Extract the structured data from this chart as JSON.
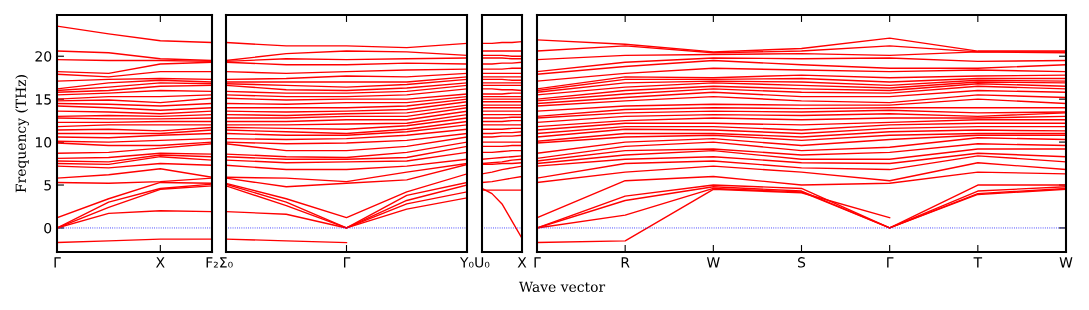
{
  "chart_data": [
    {
      "type": "line",
      "ylabel": "Frequency (THz)",
      "color": "#ff0000",
      "categories": [
        "Γ",
        null,
        "X",
        "F₂"
      ],
      "ylim": [
        -2.8,
        24.8
      ],
      "yticks": [
        0,
        5,
        10,
        15,
        20
      ],
      "grid": false,
      "legend": false,
      "ref_lines": [
        {
          "axis": "y",
          "value": 0,
          "color": "#0000ff",
          "line_style": "dotted"
        }
      ],
      "series": [
        {
          "values": [
            -1.7,
            -1.5,
            -1.3,
            -1.3
          ]
        },
        {
          "values": [
            0,
            1.7,
            2.0,
            1.9
          ]
        },
        {
          "values": [
            0,
            2.4,
            4.5,
            4.9
          ]
        },
        {
          "values": [
            0,
            3.0,
            4.6,
            5.1
          ]
        },
        {
          "values": [
            1.2,
            3.4,
            5.3,
            5.2
          ]
        },
        {
          "values": [
            5.3,
            5.2,
            5.4,
            5.8
          ]
        },
        {
          "values": [
            5.8,
            6.2,
            6.9,
            5.9
          ]
        },
        {
          "values": [
            7.2,
            7.0,
            7.5,
            7.3
          ]
        },
        {
          "values": [
            7.5,
            7.4,
            8.3,
            7.9
          ]
        },
        {
          "values": [
            7.8,
            7.7,
            8.5,
            8.3
          ]
        },
        {
          "values": [
            8.1,
            8.2,
            8.7,
            8.6
          ]
        },
        {
          "values": [
            8.7,
            8.8,
            9.3,
            9.8
          ]
        },
        {
          "values": [
            9.9,
            9.6,
            9.6,
            10.0
          ]
        },
        {
          "values": [
            10.1,
            10.0,
            10.2,
            10.4
          ]
        },
        {
          "values": [
            10.6,
            10.5,
            10.8,
            11.0
          ]
        },
        {
          "values": [
            11.0,
            11.0,
            11.0,
            11.4
          ]
        },
        {
          "values": [
            11.4,
            11.5,
            11.3,
            11.7
          ]
        },
        {
          "values": [
            11.8,
            12.0,
            12.0,
            12.0
          ]
        },
        {
          "values": [
            12.3,
            12.3,
            12.4,
            12.4
          ]
        },
        {
          "values": [
            12.8,
            12.7,
            12.7,
            12.8
          ]
        },
        {
          "values": [
            13.0,
            13.1,
            13.0,
            13.2
          ]
        },
        {
          "values": [
            13.6,
            13.5,
            13.3,
            13.6
          ]
        },
        {
          "values": [
            14.2,
            14.0,
            13.7,
            14.0
          ]
        },
        {
          "values": [
            14.5,
            14.4,
            14.2,
            14.5
          ]
        },
        {
          "values": [
            14.8,
            14.9,
            14.6,
            15.1
          ]
        },
        {
          "values": [
            15.0,
            15.3,
            15.3,
            15.5
          ]
        },
        {
          "values": [
            15.5,
            15.7,
            16.0,
            15.9
          ]
        },
        {
          "values": [
            15.8,
            16.0,
            16.5,
            16.6
          ]
        },
        {
          "values": [
            16.0,
            16.4,
            16.9,
            16.8
          ]
        },
        {
          "values": [
            16.2,
            16.9,
            17.2,
            17.0
          ]
        },
        {
          "values": [
            17.1,
            17.3,
            17.4,
            17.3
          ]
        },
        {
          "values": [
            17.9,
            17.6,
            18.2,
            18.2
          ]
        },
        {
          "values": [
            18.2,
            18.0,
            19.1,
            19.3
          ]
        },
        {
          "values": [
            19.6,
            19.5,
            19.5,
            19.4
          ]
        },
        {
          "values": [
            20.6,
            20.4,
            19.7,
            19.5
          ]
        },
        {
          "values": [
            23.5,
            22.6,
            21.8,
            21.6
          ]
        }
      ]
    },
    {
      "type": "line",
      "color": "#ff0000",
      "categories": [
        "Σ₀",
        null,
        "Γ",
        null,
        "Y₀"
      ],
      "ylim": [
        -2.8,
        24.8
      ],
      "yticks": [
        0,
        5,
        10,
        15,
        20
      ],
      "tick_labels": "x",
      "grid": false,
      "legend": false,
      "ref_lines": [
        {
          "axis": "y",
          "value": 0,
          "color": "#0000ff",
          "line_style": "dotted"
        }
      ],
      "series": [
        {
          "values": [
            -1.3,
            -1.5,
            -1.7,
            null,
            null
          ]
        },
        {
          "values": [
            null,
            null,
            0,
            2.2,
            3.5
          ]
        },
        {
          "values": [
            1.9,
            1.6,
            0,
            2.8,
            4.2
          ]
        },
        {
          "values": [
            4.9,
            2.6,
            0,
            3.2,
            5.0
          ]
        },
        {
          "values": [
            5.1,
            3.0,
            0,
            3.8,
            5.3
          ]
        },
        {
          "values": [
            5.2,
            3.4,
            1.2,
            4.2,
            6.3
          ]
        },
        {
          "values": [
            5.8,
            4.8,
            5.2,
            5.6,
            7.4
          ]
        },
        {
          "values": [
            5.9,
            5.8,
            5.4,
            6.5,
            7.5
          ]
        },
        {
          "values": [
            7.3,
            6.8,
            6.8,
            7.2,
            8.0
          ]
        },
        {
          "values": [
            7.9,
            7.6,
            7.7,
            7.8,
            8.8
          ]
        },
        {
          "values": [
            8.3,
            8.0,
            8.0,
            8.2,
            9.5
          ]
        },
        {
          "values": [
            8.6,
            8.3,
            8.2,
            8.8,
            10.0
          ]
        },
        {
          "values": [
            9.8,
            9.0,
            9.0,
            9.5,
            10.6
          ]
        },
        {
          "values": [
            10.0,
            9.8,
            9.9,
            10.2,
            11.0
          ]
        },
        {
          "values": [
            10.4,
            10.3,
            10.4,
            10.8,
            11.5
          ]
        },
        {
          "values": [
            11.0,
            10.8,
            10.8,
            11.2,
            12.0
          ]
        },
        {
          "values": [
            11.4,
            11.2,
            11.0,
            11.5,
            12.4
          ]
        },
        {
          "values": [
            11.7,
            11.6,
            11.5,
            11.9,
            12.8
          ]
        },
        {
          "values": [
            12.0,
            12.0,
            12.1,
            12.2,
            13.2
          ]
        },
        {
          "values": [
            12.4,
            12.4,
            12.6,
            12.6,
            13.6
          ]
        },
        {
          "values": [
            12.8,
            12.8,
            13.0,
            13.0,
            14.0
          ]
        },
        {
          "values": [
            13.2,
            13.1,
            13.3,
            13.4,
            14.3
          ]
        },
        {
          "values": [
            13.6,
            13.5,
            13.6,
            13.8,
            14.7
          ]
        },
        {
          "values": [
            14.0,
            14.0,
            14.0,
            14.2,
            15.0
          ]
        },
        {
          "values": [
            14.5,
            14.4,
            14.6,
            14.6,
            15.3
          ]
        },
        {
          "values": [
            15.1,
            14.9,
            15.0,
            15.0,
            15.6
          ]
        },
        {
          "values": [
            15.5,
            15.3,
            15.3,
            15.5,
            16.2
          ]
        },
        {
          "values": [
            15.9,
            15.7,
            15.7,
            15.9,
            16.6
          ]
        },
        {
          "values": [
            16.6,
            16.1,
            16.0,
            16.3,
            16.9
          ]
        },
        {
          "values": [
            16.8,
            16.6,
            16.4,
            16.7,
            17.3
          ]
        },
        {
          "values": [
            17.0,
            17.0,
            17.0,
            17.0,
            17.6
          ]
        },
        {
          "values": [
            17.3,
            17.4,
            17.7,
            17.6,
            18.0
          ]
        },
        {
          "values": [
            18.2,
            18.0,
            18.2,
            18.4,
            18.5
          ]
        },
        {
          "values": [
            19.3,
            19.0,
            19.0,
            19.2,
            19.1
          ]
        },
        {
          "values": [
            19.4,
            19.7,
            19.6,
            19.7,
            19.8
          ]
        },
        {
          "values": [
            19.5,
            20.3,
            20.6,
            20.5,
            20.1
          ]
        },
        {
          "values": [
            21.6,
            21.2,
            21.2,
            21.0,
            21.5
          ]
        }
      ]
    },
    {
      "type": "line",
      "color": "#ff0000",
      "categories": [
        "U₀",
        null,
        null,
        null,
        "X"
      ],
      "ylim": [
        -2.8,
        24.8
      ],
      "yticks": [
        0,
        5,
        10,
        15,
        20
      ],
      "tick_labels": "x",
      "grid": false,
      "legend": false,
      "ref_lines": [
        {
          "axis": "y",
          "value": 0,
          "color": "#0000ff",
          "line_style": "dotted"
        }
      ],
      "series": [
        {
          "values": [
            4.6,
            4.0,
            2.8,
            0.8,
            -1.2
          ]
        },
        {
          "values": [
            4.4,
            4.4,
            4.4,
            4.4,
            4.4
          ]
        },
        {
          "values": [
            5.3,
            5.4,
            5.6,
            5.8,
            6.0
          ]
        },
        {
          "values": [
            6.3,
            6.5,
            6.8,
            7.0,
            7.2
          ]
        },
        {
          "values": [
            7.4,
            7.4,
            7.5,
            7.5,
            7.6
          ]
        },
        {
          "values": [
            7.5,
            7.6,
            7.7,
            7.9,
            8.0
          ]
        },
        {
          "values": [
            8.0,
            8.1,
            8.2,
            8.3,
            8.4
          ]
        },
        {
          "values": [
            8.8,
            8.8,
            8.9,
            9.0,
            9.0
          ]
        },
        {
          "values": [
            9.5,
            9.5,
            9.5,
            9.6,
            9.6
          ]
        },
        {
          "values": [
            10.0,
            10.0,
            10.0,
            10.0,
            10.0
          ]
        },
        {
          "values": [
            10.6,
            10.6,
            10.7,
            10.7,
            10.8
          ]
        },
        {
          "values": [
            11.0,
            11.0,
            11.1,
            11.1,
            11.2
          ]
        },
        {
          "values": [
            11.5,
            11.5,
            11.5,
            11.6,
            11.6
          ]
        },
        {
          "values": [
            12.0,
            12.0,
            12.0,
            12.0,
            12.0
          ]
        },
        {
          "values": [
            12.4,
            12.4,
            12.4,
            12.5,
            12.5
          ]
        },
        {
          "values": [
            12.8,
            12.8,
            12.8,
            12.9,
            12.9
          ]
        },
        {
          "values": [
            13.2,
            13.2,
            13.2,
            13.2,
            13.2
          ]
        },
        {
          "values": [
            13.6,
            13.6,
            13.6,
            13.6,
            13.6
          ]
        },
        {
          "values": [
            14.0,
            14.0,
            14.0,
            14.0,
            14.0
          ]
        },
        {
          "values": [
            14.3,
            14.3,
            14.3,
            14.3,
            14.3
          ]
        },
        {
          "values": [
            14.7,
            14.7,
            14.7,
            14.7,
            14.7
          ]
        },
        {
          "values": [
            15.0,
            15.0,
            15.0,
            15.0,
            15.0
          ]
        },
        {
          "values": [
            15.3,
            15.3,
            15.3,
            15.3,
            15.3
          ]
        },
        {
          "values": [
            15.6,
            15.6,
            15.6,
            15.7,
            15.7
          ]
        },
        {
          "values": [
            16.2,
            16.2,
            16.1,
            16.1,
            16.0
          ]
        },
        {
          "values": [
            16.6,
            16.6,
            16.6,
            16.6,
            16.6
          ]
        },
        {
          "values": [
            16.9,
            16.9,
            16.9,
            16.9,
            16.9
          ]
        },
        {
          "values": [
            17.3,
            17.3,
            17.3,
            17.2,
            17.2
          ]
        },
        {
          "values": [
            17.6,
            17.6,
            17.6,
            17.6,
            17.6
          ]
        },
        {
          "values": [
            18.0,
            18.0,
            18.0,
            18.0,
            18.0
          ]
        },
        {
          "values": [
            18.5,
            18.5,
            18.5,
            18.6,
            18.6
          ]
        },
        {
          "values": [
            19.1,
            19.1,
            19.2,
            19.2,
            19.3
          ]
        },
        {
          "values": [
            19.8,
            19.8,
            19.8,
            19.7,
            19.7
          ]
        },
        {
          "values": [
            20.1,
            20.1,
            20.1,
            20.0,
            20.0
          ]
        },
        {
          "values": [
            20.6,
            20.6,
            20.6,
            20.6,
            20.6
          ]
        },
        {
          "values": [
            21.5,
            21.5,
            21.6,
            21.6,
            21.7
          ]
        }
      ]
    },
    {
      "type": "line",
      "xlabel": "Wave vector",
      "color": "#ff0000",
      "categories": [
        "Γ",
        "R",
        "W",
        "S",
        "Γ",
        "T",
        "W"
      ],
      "ylim": [
        -2.8,
        24.8
      ],
      "yticks": [
        0,
        5,
        10,
        15,
        20
      ],
      "tick_labels": "x",
      "grid": false,
      "legend": false,
      "ref_lines": [
        {
          "axis": "y",
          "value": 0,
          "color": "#0000ff",
          "line_style": "dotted"
        }
      ],
      "series": [
        {
          "values": [
            -1.7,
            -1.5,
            4.5,
            4.1,
            1.2,
            null,
            null
          ]
        },
        {
          "values": [
            null,
            null,
            null,
            null,
            0,
            3.9,
            4.5
          ]
        },
        {
          "values": [
            0,
            1.5,
            4.6,
            4.2,
            0,
            4.0,
            4.6
          ]
        },
        {
          "values": [
            0,
            3.2,
            4.8,
            4.3,
            0,
            4.3,
            4.8
          ]
        },
        {
          "values": [
            0,
            3.7,
            5.0,
            4.6,
            0,
            5.0,
            5.0
          ]
        },
        {
          "values": [
            1.2,
            5.5,
            6.0,
            5.0,
            5.2,
            6.5,
            6.3
          ]
        },
        {
          "values": [
            5.3,
            6.5,
            7.2,
            6.5,
            5.5,
            7.6,
            6.8
          ]
        },
        {
          "values": [
            5.8,
            7.5,
            7.8,
            7.0,
            6.8,
            8.4,
            7.7
          ]
        },
        {
          "values": [
            7.2,
            8.0,
            8.3,
            7.6,
            7.5,
            8.7,
            8.3
          ]
        },
        {
          "values": [
            7.5,
            8.5,
            9.0,
            8.0,
            8.0,
            9.2,
            9.2
          ]
        },
        {
          "values": [
            7.8,
            9.0,
            9.2,
            8.5,
            8.8,
            9.8,
            9.6
          ]
        },
        {
          "values": [
            8.1,
            9.5,
            10.0,
            9.0,
            9.4,
            10.5,
            10.3
          ]
        },
        {
          "values": [
            8.7,
            10.0,
            10.4,
            9.6,
            10.3,
            10.8,
            10.8
          ]
        },
        {
          "values": [
            9.9,
            10.6,
            10.8,
            10.2,
            10.8,
            11.0,
            11.0
          ]
        },
        {
          "values": [
            10.1,
            11.0,
            11.0,
            10.6,
            11.2,
            11.4,
            11.3
          ]
        },
        {
          "values": [
            10.6,
            11.5,
            11.4,
            11.0,
            11.6,
            11.8,
            11.8
          ]
        },
        {
          "values": [
            11.0,
            11.8,
            11.8,
            11.4,
            12.0,
            12.2,
            12.2
          ]
        },
        {
          "values": [
            11.4,
            12.2,
            12.2,
            12.0,
            12.3,
            12.6,
            12.6
          ]
        },
        {
          "values": [
            11.8,
            12.5,
            12.8,
            12.6,
            12.8,
            12.8,
            13.0
          ]
        },
        {
          "values": [
            12.3,
            13.0,
            13.2,
            13.1,
            13.3,
            13.0,
            13.4
          ]
        },
        {
          "values": [
            12.8,
            13.4,
            13.6,
            13.5,
            13.7,
            13.4,
            13.5
          ]
        },
        {
          "values": [
            13.0,
            13.8,
            14.0,
            13.9,
            14.0,
            14.0,
            14.0
          ]
        },
        {
          "values": [
            13.6,
            14.2,
            14.4,
            14.3,
            14.3,
            15.0,
            14.5
          ]
        },
        {
          "values": [
            14.2,
            14.8,
            15.3,
            14.8,
            14.6,
            15.5,
            15.2
          ]
        },
        {
          "values": [
            14.5,
            15.2,
            15.8,
            15.3,
            15.3,
            16.0,
            15.8
          ]
        },
        {
          "values": [
            14.8,
            15.6,
            16.2,
            15.8,
            15.7,
            16.5,
            16.2
          ]
        },
        {
          "values": [
            15.0,
            16.0,
            16.5,
            16.2,
            16.0,
            16.8,
            16.5
          ]
        },
        {
          "values": [
            15.5,
            16.4,
            16.9,
            16.6,
            16.3,
            17.0,
            16.9
          ]
        },
        {
          "values": [
            15.8,
            16.9,
            17.1,
            17.0,
            16.6,
            17.2,
            17.1
          ]
        },
        {
          "values": [
            16.0,
            17.3,
            17.3,
            17.4,
            17.0,
            17.4,
            17.4
          ]
        },
        {
          "values": [
            16.2,
            17.6,
            17.5,
            17.8,
            17.5,
            17.7,
            17.8
          ]
        },
        {
          "values": [
            17.1,
            18.0,
            18.6,
            18.4,
            18.2,
            18.4,
            18.2
          ]
        },
        {
          "values": [
            17.9,
            18.8,
            19.5,
            19.0,
            18.6,
            18.6,
            19.0
          ]
        },
        {
          "values": [
            18.2,
            19.3,
            19.8,
            19.7,
            19.8,
            19.4,
            19.5
          ]
        },
        {
          "values": [
            19.6,
            20.1,
            20.2,
            20.3,
            20.1,
            20.5,
            20.4
          ]
        },
        {
          "values": [
            20.6,
            21.2,
            20.4,
            20.6,
            21.2,
            20.5,
            20.5
          ]
        },
        {
          "values": [
            21.9,
            21.4,
            20.5,
            20.9,
            22.1,
            20.6,
            20.6
          ]
        }
      ]
    }
  ]
}
